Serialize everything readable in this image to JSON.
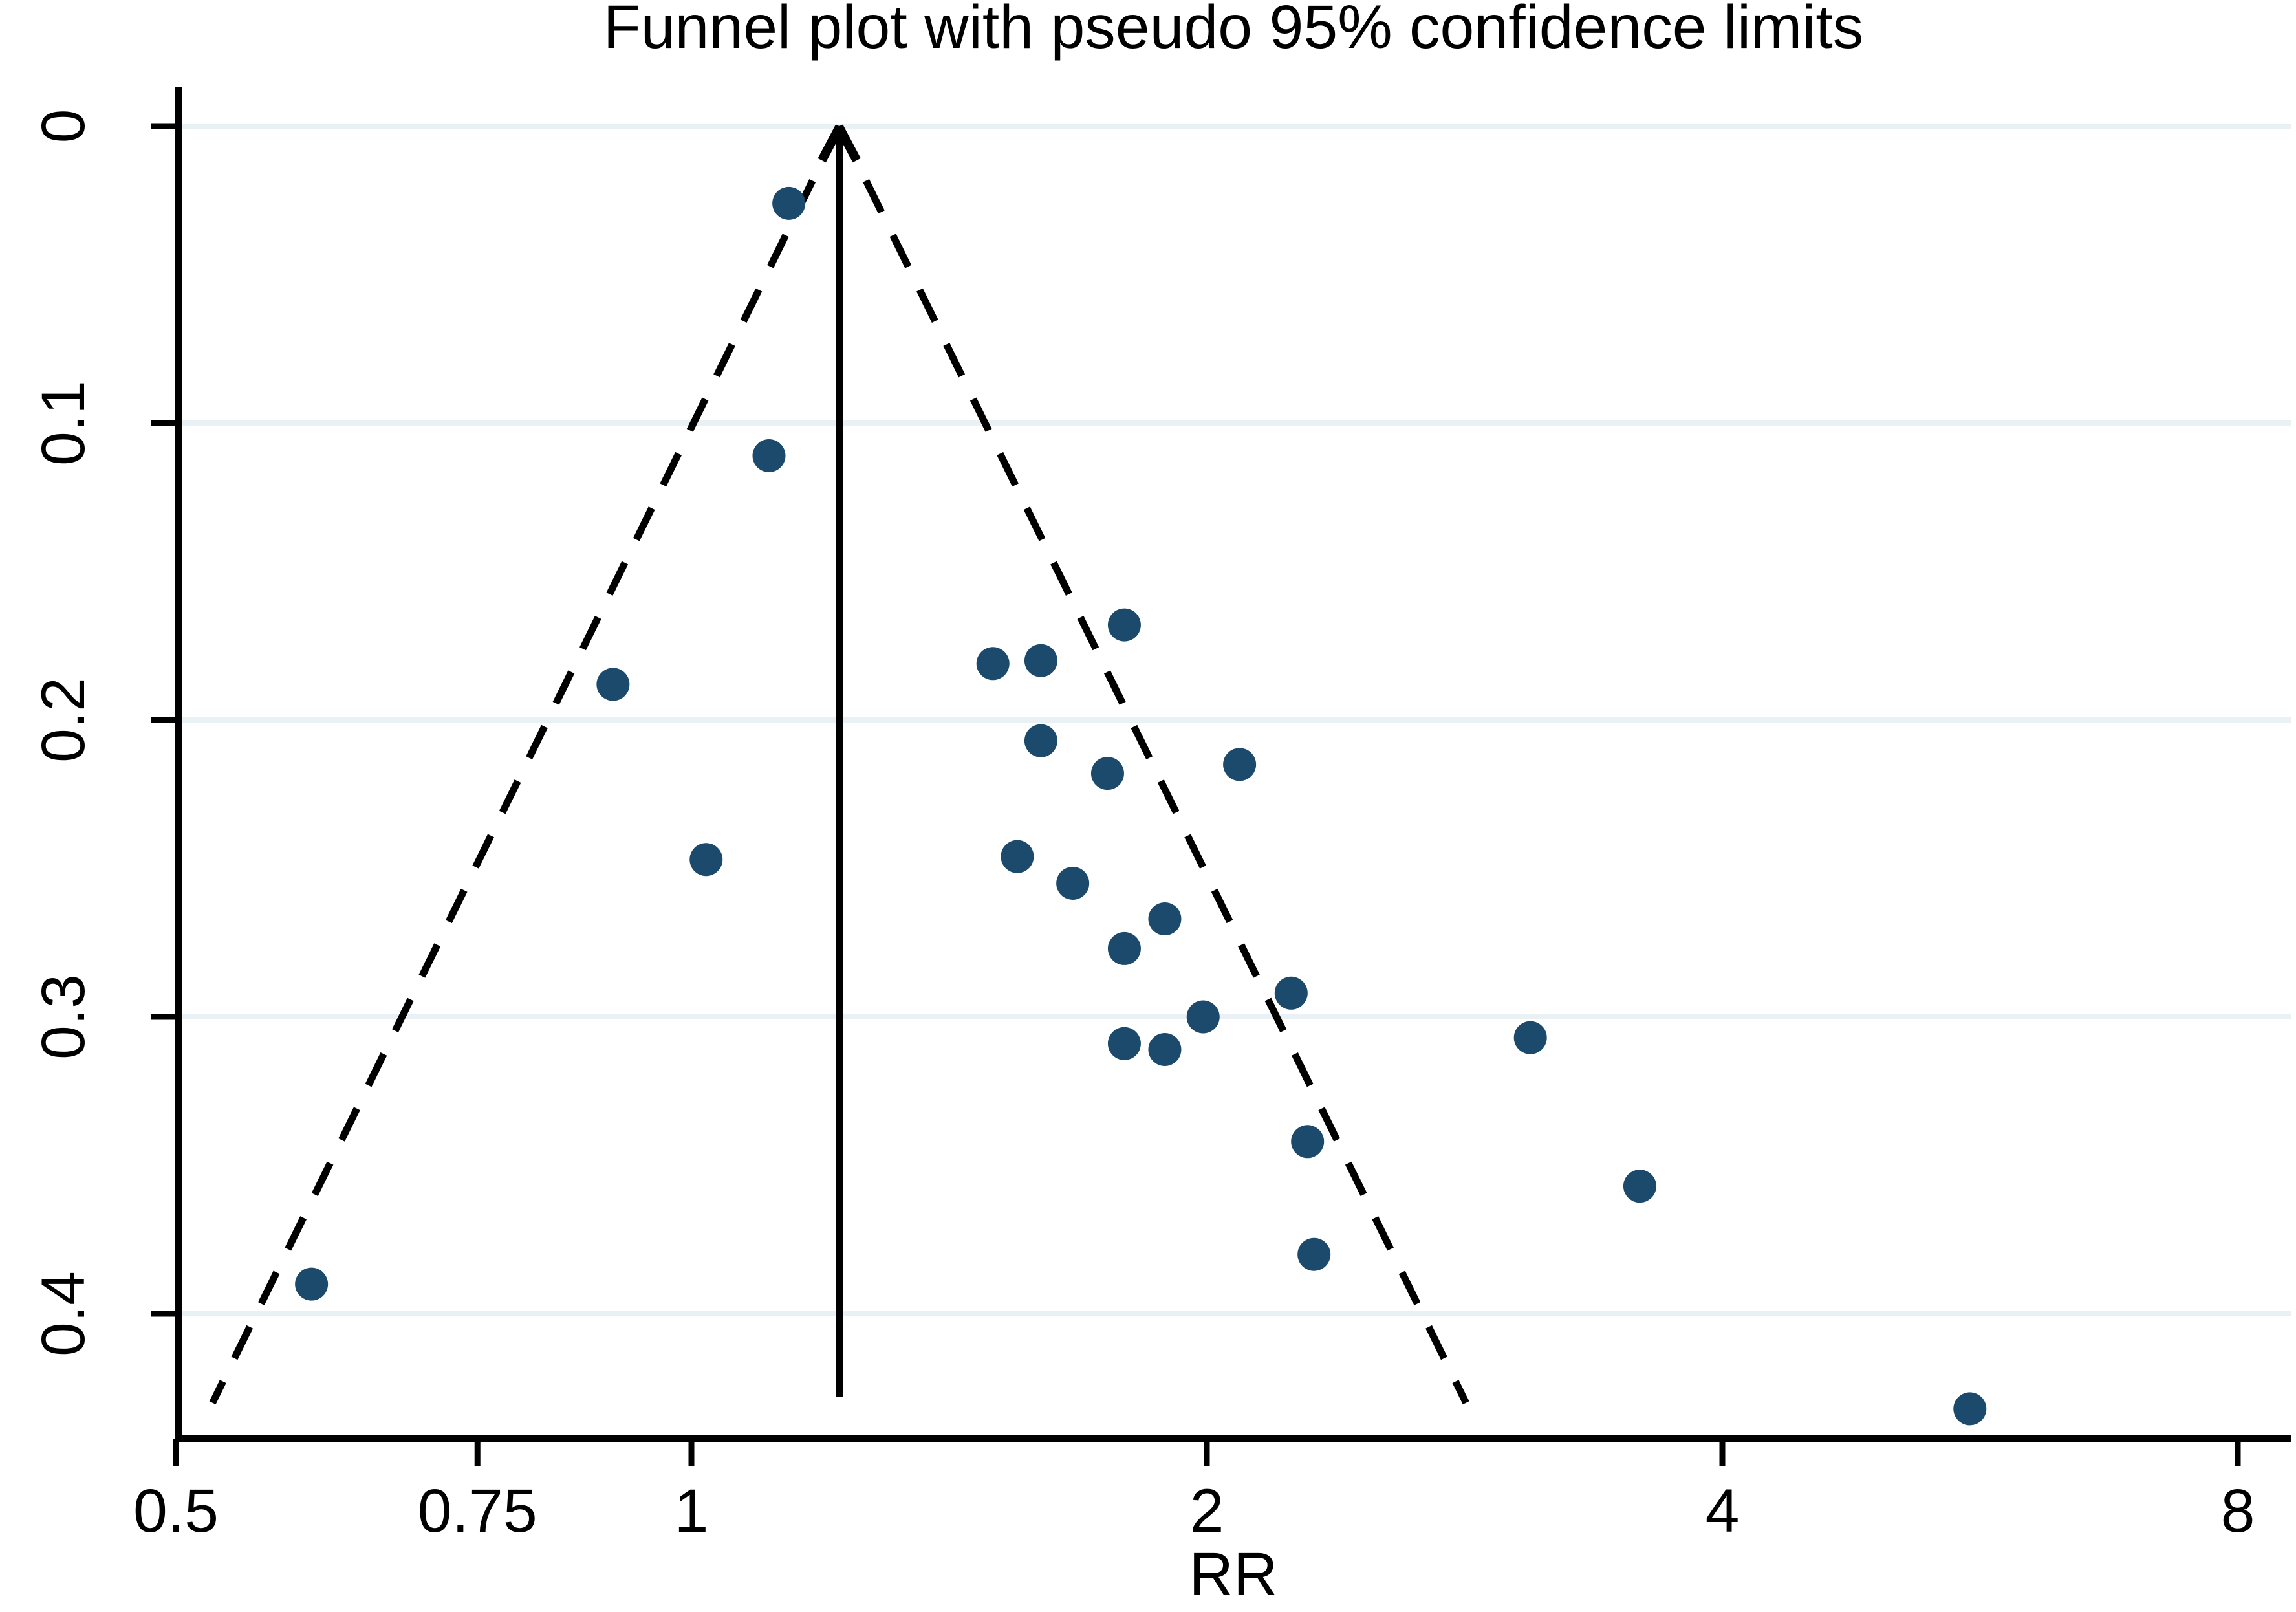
{
  "title": "Funnel plot with pseudo 95% confidence limits",
  "x_axis": {
    "label": "RR",
    "tick_labels": [
      "0.5",
      "0.75",
      "1",
      "2",
      "4",
      "8"
    ]
  },
  "y_axis": {
    "label": "",
    "tick_labels": [
      "0",
      "0.1",
      "0.2",
      "0.3",
      "0.4"
    ]
  },
  "chart_data": {
    "type": "scatter",
    "title": "Funnel plot with pseudo 95% confidence limits",
    "xlabel": "RR",
    "ylabel": "",
    "x_scale": "log2",
    "x_ticks": [
      0.5,
      0.75,
      1,
      2,
      4,
      8
    ],
    "y_ticks": [
      0,
      0.1,
      0.2,
      0.3,
      0.4
    ],
    "xlim": [
      0.5,
      8.6
    ],
    "ylim": [
      0,
      0.442
    ],
    "y_axis_meaning": "standard error of log RR (0 at top)",
    "grid": "horizontal gridlines at each y tick",
    "legend": "none",
    "pooled_estimate_rr": 1.22,
    "ci_multiplier": 1.96,
    "funnel_se_extent": 0.43,
    "pooled_line_se_extent": 0.428,
    "series": [
      {
        "name": "studies",
        "marker": "filled circle",
        "points_rr_se": [
          [
            1.14,
            0.026
          ],
          [
            1.11,
            0.111
          ],
          [
            0.9,
            0.188
          ],
          [
            1.02,
            0.247
          ],
          [
            0.6,
            0.39
          ],
          [
            1.5,
            0.181
          ],
          [
            1.6,
            0.18
          ],
          [
            1.79,
            0.168
          ],
          [
            1.6,
            0.207
          ],
          [
            1.75,
            0.218
          ],
          [
            2.09,
            0.215
          ],
          [
            1.55,
            0.246
          ],
          [
            1.67,
            0.255
          ],
          [
            1.89,
            0.267
          ],
          [
            1.79,
            0.277
          ],
          [
            2.24,
            0.292
          ],
          [
            1.99,
            0.3
          ],
          [
            1.79,
            0.309
          ],
          [
            1.89,
            0.311
          ],
          [
            2.29,
            0.342
          ],
          [
            2.31,
            0.38
          ],
          [
            3.09,
            0.307
          ],
          [
            3.58,
            0.357
          ],
          [
            5.58,
            0.432
          ]
        ]
      }
    ]
  },
  "colors": {
    "marker": "#1b4a6d",
    "gridline": "#e9f1f4",
    "axis_and_lines": "#000000",
    "background": "#ffffff"
  }
}
